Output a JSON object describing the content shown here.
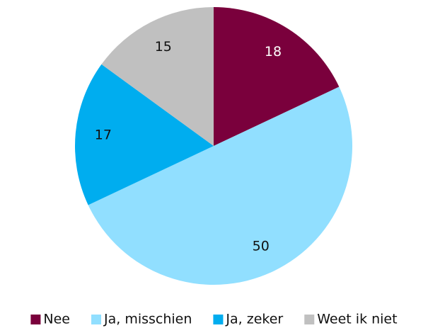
{
  "chart_data": {
    "type": "pie",
    "categories": [
      "Nee",
      "Ja, misschien",
      "Ja, zeker",
      "Weet ik niet"
    ],
    "values": [
      18,
      50,
      17,
      15
    ],
    "colors": [
      "#7a003c",
      "#91dfff",
      "#00adef",
      "#c0c0c0"
    ],
    "legend": "bottom"
  }
}
